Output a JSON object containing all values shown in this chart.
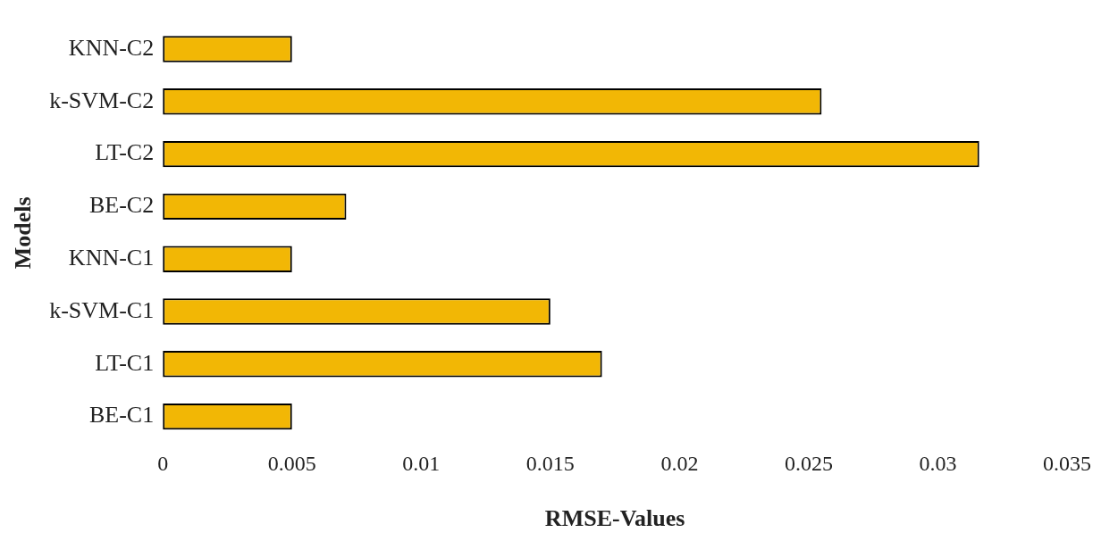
{
  "chart_data": {
    "type": "bar",
    "orientation": "horizontal",
    "xlabel": "RMSE-Values",
    "ylabel": "Models",
    "categories": [
      "KNN-C2",
      "k-SVM-C2",
      "LT-C2",
      "BE-C2",
      "KNN-C1",
      "k-SVM-C1",
      "LT-C1",
      "BE-C1"
    ],
    "values": [
      0.005,
      0.0255,
      0.0316,
      0.0071,
      0.005,
      0.015,
      0.017,
      0.005
    ],
    "color": "#f2b705",
    "xlim": [
      0,
      0.035
    ],
    "xticks": [
      0,
      0.005,
      0.01,
      0.015,
      0.02,
      0.025,
      0.03,
      0.035
    ],
    "grid": false,
    "legend": false
  }
}
